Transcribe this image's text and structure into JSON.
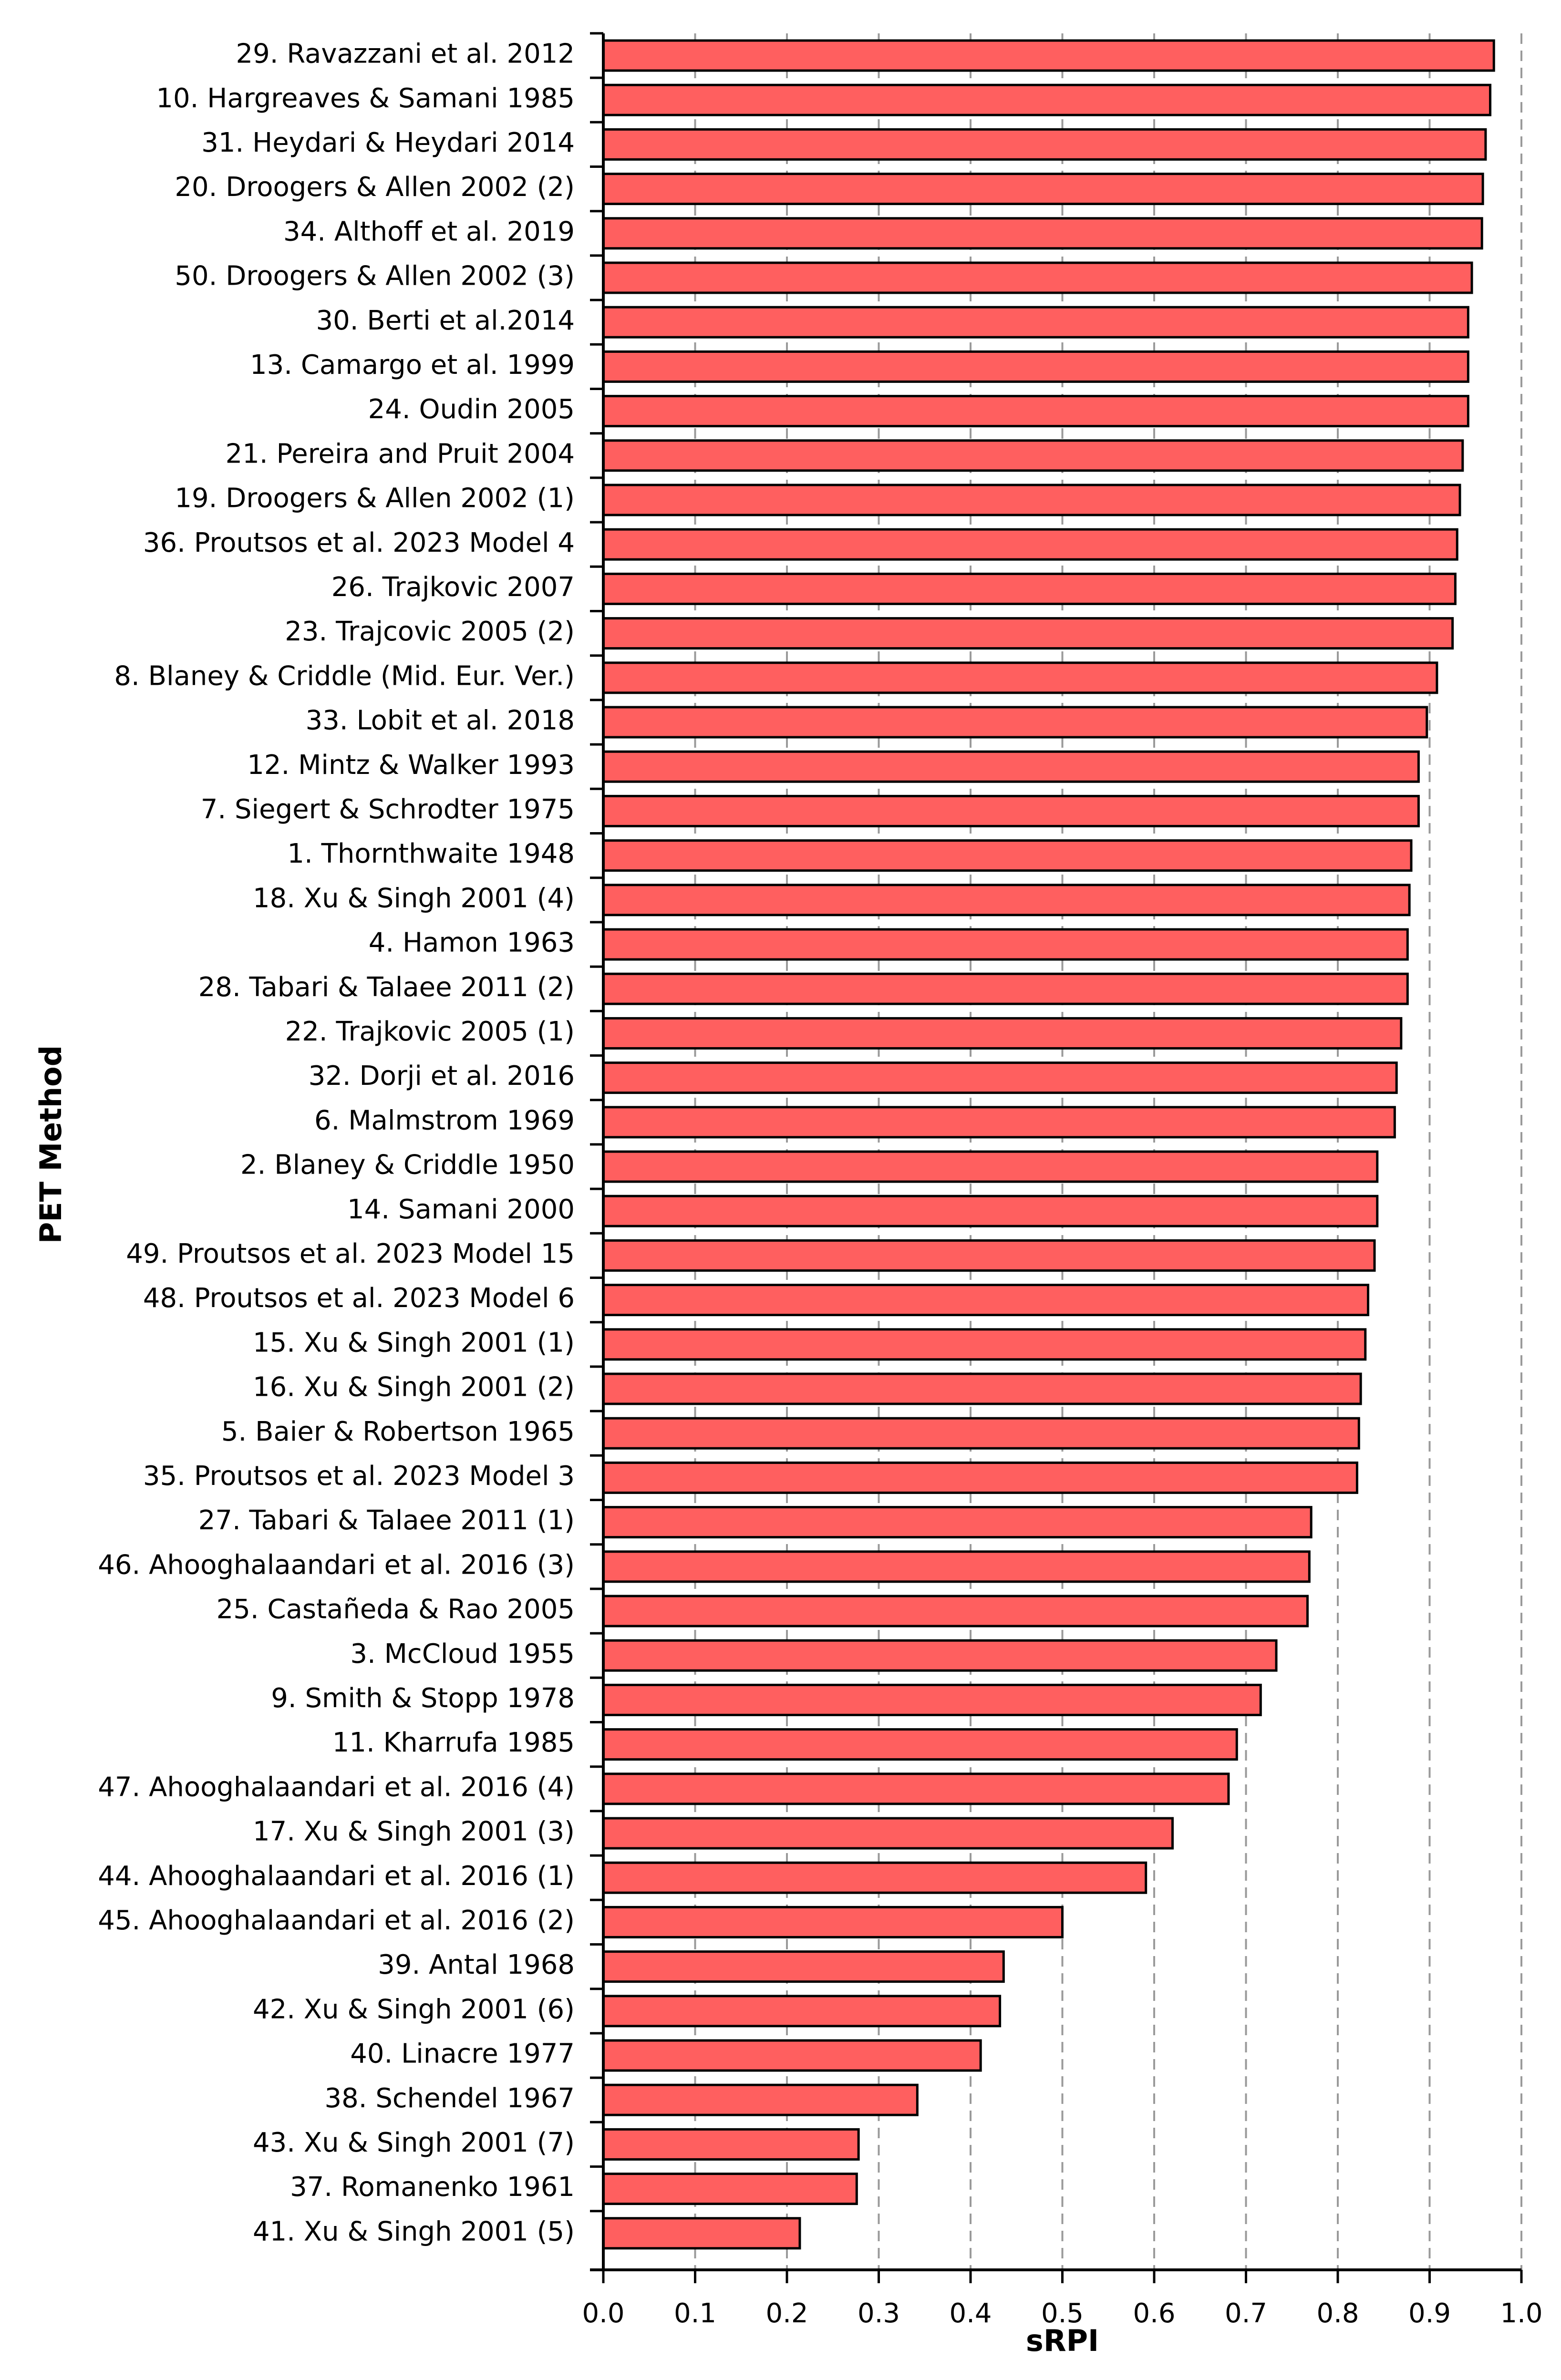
{
  "colors": {
    "bar_fill": "#ff5f5f",
    "bar_stroke": "#000000",
    "grid": "#9a9a9a",
    "text": "#000000"
  },
  "chart_data": {
    "type": "bar",
    "orientation": "horizontal",
    "xlabel": "sRPI",
    "ylabel": "PET Method",
    "xlim": [
      0.0,
      1.0
    ],
    "xticks": [
      "0.0",
      "0.1",
      "0.2",
      "0.3",
      "0.4",
      "0.5",
      "0.6",
      "0.7",
      "0.8",
      "0.9",
      "1.0"
    ],
    "grid": "vertical dashed",
    "categories": [
      "29. Ravazzani et al. 2012",
      "10. Hargreaves & Samani 1985",
      "31. Heydari & Heydari 2014",
      "20. Droogers & Allen 2002 (2)",
      "34. Althoff et al. 2019",
      "50. Droogers & Allen 2002 (3)",
      "30. Berti et al.2014",
      "13. Camargo et al. 1999",
      "24. Oudin 2005",
      "21. Pereira and Pruit 2004",
      "19. Droogers & Allen 2002 (1)",
      "36. Proutsos et al. 2023 Model 4",
      "26. Trajkovic 2007",
      "23. Trajcovic 2005 (2)",
      "8. Blaney & Criddle (Mid. Eur. Ver.)",
      "33. Lobit et al. 2018",
      "12. Mintz & Walker 1993",
      "7. Siegert & Schrodter 1975",
      "1. Thornthwaite 1948",
      "18. Xu & Singh 2001 (4)",
      "4. Hamon 1963",
      "28. Tabari & Talaee 2011 (2)",
      "22. Trajkovic 2005 (1)",
      "32. Dorji et al. 2016",
      "6. Malmstrom 1969",
      "2. Blaney & Criddle 1950",
      "14. Samani 2000",
      "49. Proutsos et al. 2023 Model 15",
      "48. Proutsos et al. 2023 Model 6",
      "15. Xu & Singh 2001 (1)",
      "16. Xu & Singh 2001 (2)",
      "5. Baier & Robertson 1965",
      "35. Proutsos et al. 2023 Model 3",
      "27. Tabari & Talaee 2011 (1)",
      "46. Ahooghalaandari et al. 2016 (3)",
      "25. Castañeda & Rao 2005",
      "3. McCloud 1955",
      "9. Smith & Stopp 1978",
      "11. Kharrufa 1985",
      "47. Ahooghalaandari et al. 2016 (4)",
      "17. Xu & Singh 2001 (3)",
      "44. Ahooghalaandari et al. 2016 (1)",
      "45. Ahooghalaandari et al. 2016 (2)",
      "39. Antal 1968",
      "42. Xu & Singh 2001 (6)",
      "40. Linacre 1977",
      "38. Schendel 1967",
      "43. Xu & Singh 2001 (7)",
      "37. Romanenko 1961",
      "41. Xu & Singh 2001 (5)"
    ],
    "values": [
      0.97,
      0.966,
      0.961,
      0.958,
      0.957,
      0.946,
      0.942,
      0.942,
      0.942,
      0.936,
      0.933,
      0.93,
      0.928,
      0.925,
      0.908,
      0.897,
      0.888,
      0.888,
      0.88,
      0.878,
      0.876,
      0.876,
      0.869,
      0.864,
      0.862,
      0.843,
      0.843,
      0.84,
      0.833,
      0.83,
      0.825,
      0.823,
      0.821,
      0.771,
      0.769,
      0.767,
      0.733,
      0.716,
      0.69,
      0.681,
      0.62,
      0.591,
      0.5,
      0.436,
      0.432,
      0.411,
      0.342,
      0.278,
      0.276,
      0.214
    ]
  }
}
